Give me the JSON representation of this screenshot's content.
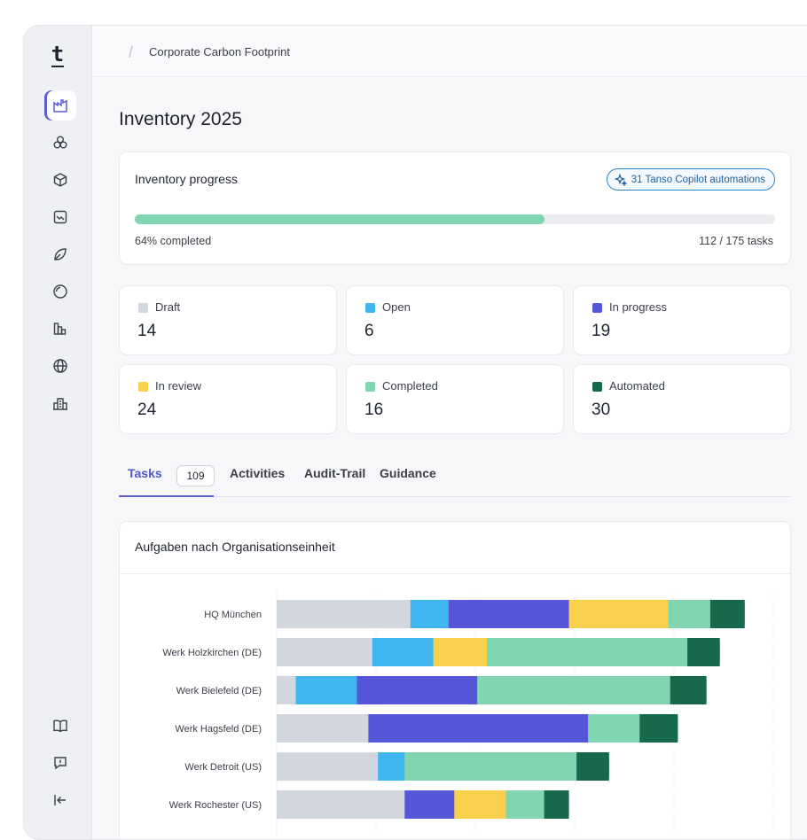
{
  "sidebar": {
    "logo": "t",
    "nav_items": [
      {
        "name": "factory-icon",
        "active": true
      },
      {
        "name": "hexagons-icon",
        "active": false
      },
      {
        "name": "cube-icon",
        "active": false
      },
      {
        "name": "chart-box-icon",
        "active": false
      },
      {
        "name": "leaf-icon",
        "active": false
      },
      {
        "name": "target-icon",
        "active": false
      },
      {
        "name": "bars-icon",
        "active": false
      },
      {
        "name": "globe-icon",
        "active": false
      },
      {
        "name": "buildings-icon",
        "active": false
      }
    ],
    "bottom_items": [
      "book-icon",
      "feedback-icon",
      "collapse-icon"
    ]
  },
  "topbar": {
    "breadcrumb": "Corporate Carbon Footprint"
  },
  "page": {
    "title": "Inventory 2025"
  },
  "progress": {
    "title": "Inventory progress",
    "copilot_label": "31 Tanso Copilot automations",
    "percent": 64,
    "percent_label": "64% completed",
    "tasks_label": "112 / 175 tasks"
  },
  "stats": [
    {
      "label": "Draft",
      "value": "14",
      "color": "#d2d6df"
    },
    {
      "label": "Open",
      "value": "6",
      "color": "#3fb6ee"
    },
    {
      "label": "In progress",
      "value": "19",
      "color": "#5656d8"
    },
    {
      "label": "In review",
      "value": "24",
      "color": "#f9d14c"
    },
    {
      "label": "Completed",
      "value": "16",
      "color": "#7fd6b0"
    },
    {
      "label": "Automated",
      "value": "30",
      "color": "#16694b"
    }
  ],
  "tabs": [
    {
      "label": "Tasks",
      "badge": "109",
      "active": true
    },
    {
      "label": "Activities",
      "active": false
    },
    {
      "label": "Audit-Trail",
      "active": false
    },
    {
      "label": "Guidance",
      "active": false
    }
  ],
  "chart_data": {
    "type": "bar",
    "orientation": "horizontal",
    "stacked": true,
    "title": "Aufgaben nach Organisationseinheit",
    "categories": [
      "HQ München",
      "Werk Holzkirchen (DE)",
      "Werk Bielefeld (DE)",
      "Werk Hagsfeld (DE)",
      "Werk Detroit (US)",
      "Werk Rochester (US)"
    ],
    "series": [
      {
        "name": "Draft",
        "color": "#d2d6df",
        "values": [
          7,
          5,
          1,
          4.8,
          5.3,
          6.7
        ]
      },
      {
        "name": "Open",
        "color": "#3fb6ee",
        "values": [
          2,
          3.2,
          3.2,
          0,
          1.4,
          0
        ]
      },
      {
        "name": "In progress",
        "color": "#5656d8",
        "values": [
          6.3,
          0,
          6.3,
          11.5,
          0,
          2.6
        ]
      },
      {
        "name": "In review",
        "color": "#f9d14c",
        "values": [
          5.2,
          2.8,
          0,
          0,
          0,
          2.7
        ]
      },
      {
        "name": "Completed",
        "color": "#7fd6b0",
        "values": [
          2.2,
          10.5,
          10.1,
          2.7,
          9,
          2
        ]
      },
      {
        "name": "Automated",
        "color": "#16694b",
        "values": [
          1.8,
          1.7,
          1.9,
          2,
          1.7,
          1.3
        ]
      }
    ],
    "xlim": [
      0,
      26
    ],
    "grid": true
  }
}
